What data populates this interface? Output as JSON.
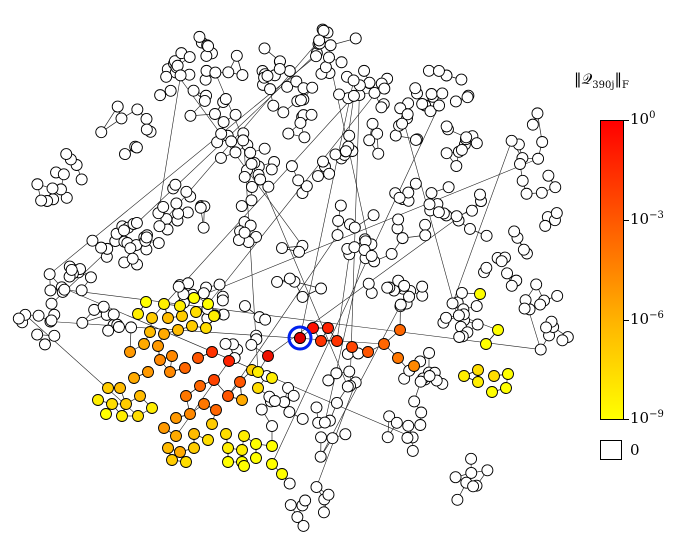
{
  "colorbar": {
    "title_norm_open": "‖",
    "title_symbol": "𝒬",
    "title_subscript": "390j",
    "title_norm_close": "‖",
    "title_norm_subscript": "F",
    "ticks": [
      {
        "base": "10",
        "exp": "0"
      },
      {
        "base": "10",
        "exp": "−3"
      },
      {
        "base": "10",
        "exp": "−6"
      },
      {
        "base": "10",
        "exp": "−9"
      }
    ],
    "zero_label": "0",
    "scale": "log",
    "colors": {
      "top": "#ff0000",
      "mid": "#ff8800",
      "bottom": "#ffff00",
      "zero": "#ffffff"
    }
  },
  "graph": {
    "source_node_highlight_color": "#0022ee",
    "node_stroke": "#000000",
    "edge_color": "#222222"
  }
}
